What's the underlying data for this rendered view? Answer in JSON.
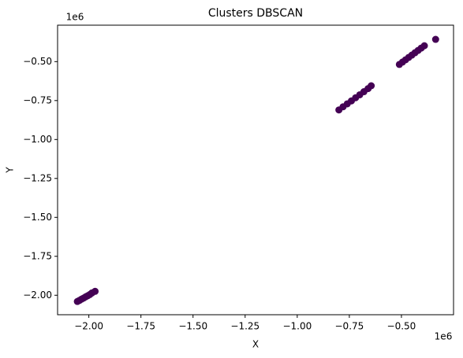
{
  "chart_data": {
    "type": "scatter",
    "title": "Clusters DBSCAN",
    "x_label": "X",
    "y_label": "Y",
    "x_offset_label": "1e6",
    "y_offset_label": "1e6",
    "series": [
      {
        "color": "#440154",
        "x": [
          -2055000,
          -2045000,
          -2035000,
          -2025000,
          -2015000,
          -2005000,
          -1995000,
          -1985000,
          -1970000,
          -800000,
          -780000,
          -760000,
          -740000,
          -720000,
          -700000,
          -680000,
          -660000,
          -645000,
          -510000,
          -495000,
          -480000,
          -465000,
          -450000,
          -435000,
          -420000,
          -405000,
          -390000,
          -336000
        ],
        "values": [
          -2040000,
          -2033000,
          -2025000,
          -2018000,
          -2010000,
          -2003000,
          -1995000,
          -1985000,
          -1975000,
          -810000,
          -790000,
          -771000,
          -752000,
          -732000,
          -713000,
          -693000,
          -673000,
          -655000,
          -518000,
          -503000,
          -488000,
          -473000,
          -458000,
          -443000,
          -428000,
          -413000,
          -398000,
          -357000
        ]
      }
    ],
    "xlim": [
      -2150000,
      -250000
    ],
    "ylim": [
      -2125000,
      -266000
    ],
    "xticks": [
      {
        "value": -2000000,
        "label": "−2.00"
      },
      {
        "value": -1750000,
        "label": "−1.75"
      },
      {
        "value": -1500000,
        "label": "−1.50"
      },
      {
        "value": -1250000,
        "label": "−1.25"
      },
      {
        "value": -1000000,
        "label": "−1.00"
      },
      {
        "value": -750000,
        "label": "−0.75"
      },
      {
        "value": -500000,
        "label": "−0.50"
      }
    ],
    "yticks": [
      {
        "value": -2000000,
        "label": "−2.00"
      },
      {
        "value": -1750000,
        "label": "−1.75"
      },
      {
        "value": -1500000,
        "label": "−1.50"
      },
      {
        "value": -1250000,
        "label": "−1.25"
      },
      {
        "value": -1000000,
        "label": "−1.00"
      },
      {
        "value": -750000,
        "label": "−0.75"
      },
      {
        "value": -500000,
        "label": "−0.50"
      }
    ],
    "grid": false
  }
}
